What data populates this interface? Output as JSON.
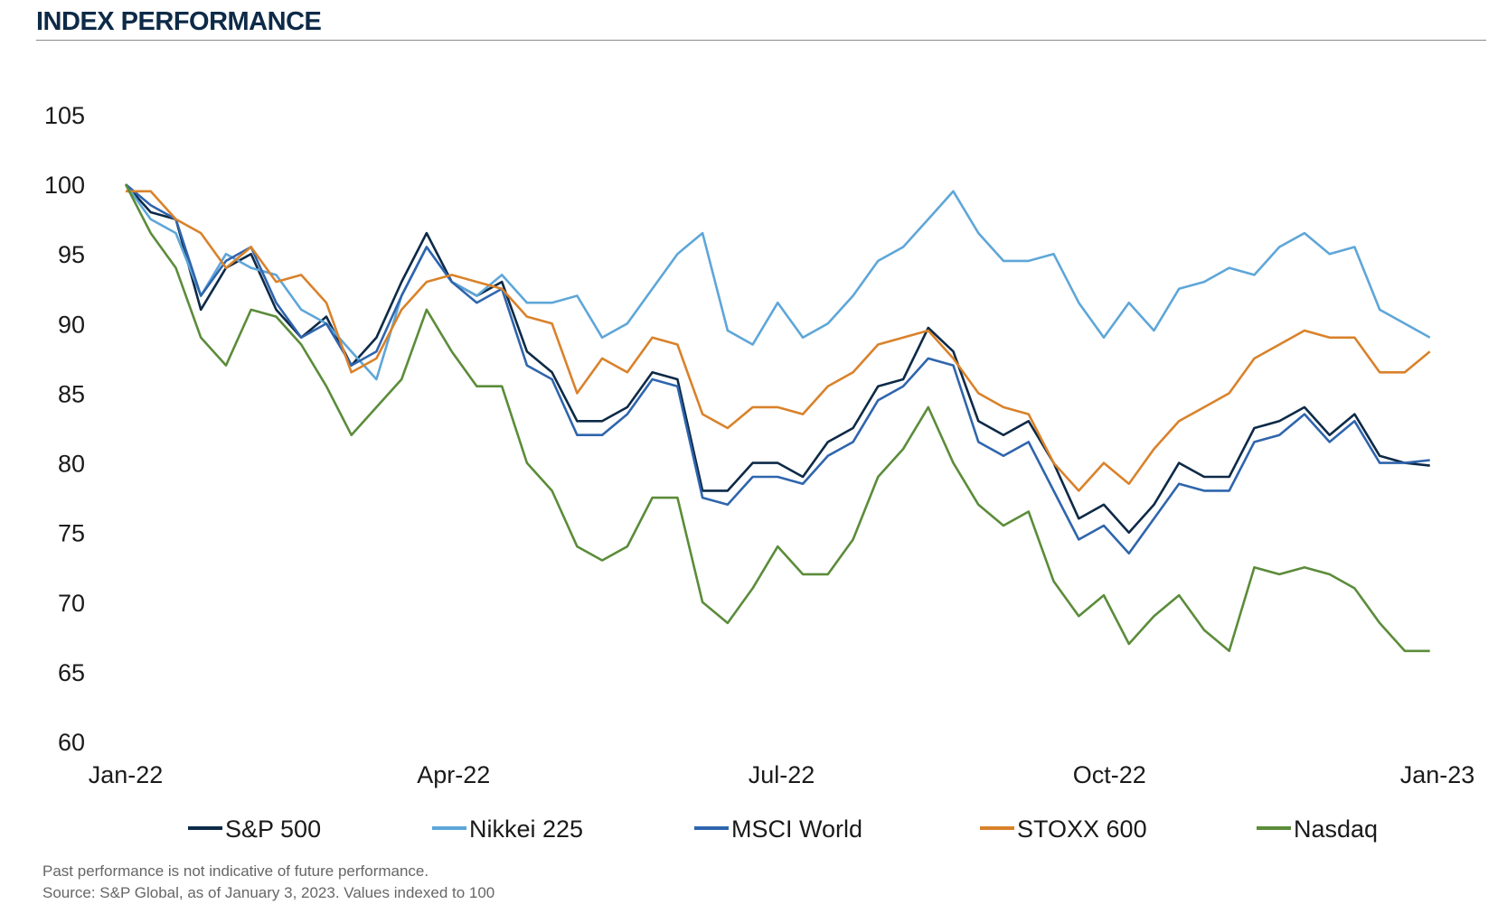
{
  "header": {
    "title": "INDEX PERFORMANCE"
  },
  "footnotes": [
    "Past performance is not indicative of future performance.",
    "Source: S&P Global, as of January 3, 2023. Values indexed to 100"
  ],
  "chart_data": {
    "type": "line",
    "title": "INDEX PERFORMANCE",
    "xlabel": "",
    "ylabel": "",
    "ylim": [
      60,
      105
    ],
    "yticks": [
      "60",
      "65",
      "70",
      "75",
      "80",
      "85",
      "90",
      "95",
      "100",
      "105"
    ],
    "xticks": [
      "Jan-22",
      "Apr-22",
      "Jul-22",
      "Oct-22",
      "Jan-23"
    ],
    "grid": false,
    "legend": "bottom",
    "series": [
      {
        "name": "S&P 500",
        "color": "#0d2a47",
        "values": [
          100,
          98,
          97.5,
          91,
          94,
          95,
          91,
          89,
          90.5,
          87,
          89,
          93,
          96.5,
          93,
          92,
          93,
          88,
          86.5,
          83,
          83,
          84,
          86.5,
          86,
          78,
          78,
          80,
          80,
          79,
          81.5,
          82.5,
          85.5,
          86,
          89.7,
          88,
          83,
          82,
          83,
          80,
          76,
          77,
          75,
          77,
          80,
          79,
          79,
          82.5,
          83,
          84,
          82,
          83.5,
          80.5,
          80,
          79.8
        ]
      },
      {
        "name": "Nikkei 225",
        "color": "#5ea6d8",
        "values": [
          100,
          97.5,
          96.5,
          92,
          95,
          94,
          93.5,
          91,
          90,
          88,
          86,
          92,
          95.5,
          93,
          92,
          93.5,
          91.5,
          91.5,
          92,
          89,
          90,
          92.5,
          95,
          96.5,
          89.5,
          88.5,
          91.5,
          89,
          90,
          92,
          94.5,
          95.5,
          97.5,
          99.5,
          96.5,
          94.5,
          94.5,
          95,
          91.5,
          89,
          91.5,
          89.5,
          92.5,
          93,
          94,
          93.5,
          95.5,
          96.5,
          95,
          95.5,
          91,
          90,
          89
        ]
      },
      {
        "name": "MSCI World",
        "color": "#2f65ad",
        "values": [
          100,
          98.5,
          97.5,
          92,
          94.5,
          95.5,
          91.5,
          89,
          90,
          87,
          88,
          92,
          95.5,
          93,
          91.5,
          92.5,
          87,
          86,
          82,
          82,
          83.5,
          86,
          85.5,
          77.5,
          77,
          79,
          79,
          78.5,
          80.5,
          81.5,
          84.5,
          85.5,
          87.5,
          87,
          81.5,
          80.5,
          81.5,
          78,
          74.5,
          75.5,
          73.5,
          76,
          78.5,
          78,
          78,
          81.5,
          82,
          83.5,
          81.5,
          83,
          80,
          80,
          80.2
        ]
      },
      {
        "name": "STOXX 600",
        "color": "#d9822b",
        "values": [
          99.5,
          99.5,
          97.5,
          96.5,
          94,
          95.5,
          93,
          93.5,
          91.5,
          86.5,
          87.5,
          91,
          93,
          93.5,
          93,
          92.5,
          90.5,
          90,
          85,
          87.5,
          86.5,
          89,
          88.5,
          83.5,
          82.5,
          84,
          84,
          83.5,
          85.5,
          86.5,
          88.5,
          89,
          89.5,
          87.5,
          85,
          84,
          83.5,
          80,
          78,
          80,
          78.5,
          81,
          83,
          84,
          85,
          87.5,
          88.5,
          89.5,
          89,
          89,
          86.5,
          86.5,
          88
        ]
      },
      {
        "name": "Nasdaq",
        "color": "#5b8c3a",
        "values": [
          100,
          96.5,
          94,
          89,
          87,
          91,
          90.5,
          88.5,
          85.5,
          82,
          84,
          86,
          91,
          88,
          85.5,
          85.5,
          80,
          78,
          74,
          73,
          74,
          77.5,
          77.5,
          70,
          68.5,
          71,
          74,
          72,
          72,
          74.5,
          79,
          81,
          84,
          80,
          77,
          75.5,
          76.5,
          71.5,
          69,
          70.5,
          67,
          69,
          70.5,
          68,
          66.5,
          72.5,
          72,
          72.5,
          72,
          71,
          68.5,
          66.5,
          66.5
        ]
      }
    ]
  }
}
